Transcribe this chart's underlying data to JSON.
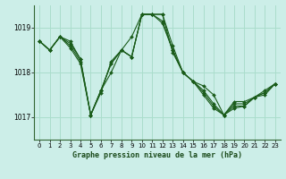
{
  "title": "Graphe pression niveau de la mer (hPa)",
  "bg_color": "#cceee8",
  "grid_color": "#aaddcc",
  "line_color": "#1a5c1a",
  "ylim": [
    1016.5,
    1019.5
  ],
  "yticks": [
    1017,
    1018,
    1019
  ],
  "xlim": [
    -0.5,
    23.5
  ],
  "xticks": [
    0,
    1,
    2,
    3,
    4,
    5,
    6,
    7,
    8,
    9,
    10,
    11,
    12,
    13,
    14,
    15,
    16,
    17,
    18,
    19,
    20,
    21,
    22,
    23
  ],
  "series": [
    [
      1018.7,
      1018.5,
      1018.8,
      1018.7,
      1018.3,
      1017.05,
      1017.55,
      1018.25,
      1018.5,
      1018.8,
      1019.3,
      1019.3,
      1019.3,
      1018.6,
      1018.0,
      1017.8,
      1017.7,
      1017.5,
      1017.05,
      1017.35,
      1017.35,
      1017.45,
      1017.6,
      1017.75
    ],
    [
      1018.7,
      1018.5,
      1018.8,
      1018.65,
      1018.3,
      1017.05,
      1017.6,
      1018.0,
      1018.5,
      1018.35,
      1019.3,
      1019.3,
      1019.3,
      1018.45,
      1018.0,
      1017.8,
      1017.6,
      1017.3,
      1017.05,
      1017.3,
      1017.3,
      1017.45,
      1017.55,
      1017.75
    ],
    [
      1018.7,
      1018.5,
      1018.8,
      1018.6,
      1018.25,
      1017.05,
      1017.6,
      1018.2,
      1018.5,
      1018.35,
      1019.3,
      1019.3,
      1019.15,
      1018.5,
      1018.0,
      1017.8,
      1017.55,
      1017.25,
      1017.05,
      1017.25,
      1017.25,
      1017.45,
      1017.55,
      1017.75
    ],
    [
      1018.7,
      1018.5,
      1018.8,
      1018.55,
      1018.2,
      1017.05,
      1017.6,
      1018.2,
      1018.5,
      1018.35,
      1019.3,
      1019.3,
      1019.1,
      1018.5,
      1018.0,
      1017.8,
      1017.5,
      1017.2,
      1017.05,
      1017.2,
      1017.25,
      1017.45,
      1017.5,
      1017.75
    ]
  ]
}
